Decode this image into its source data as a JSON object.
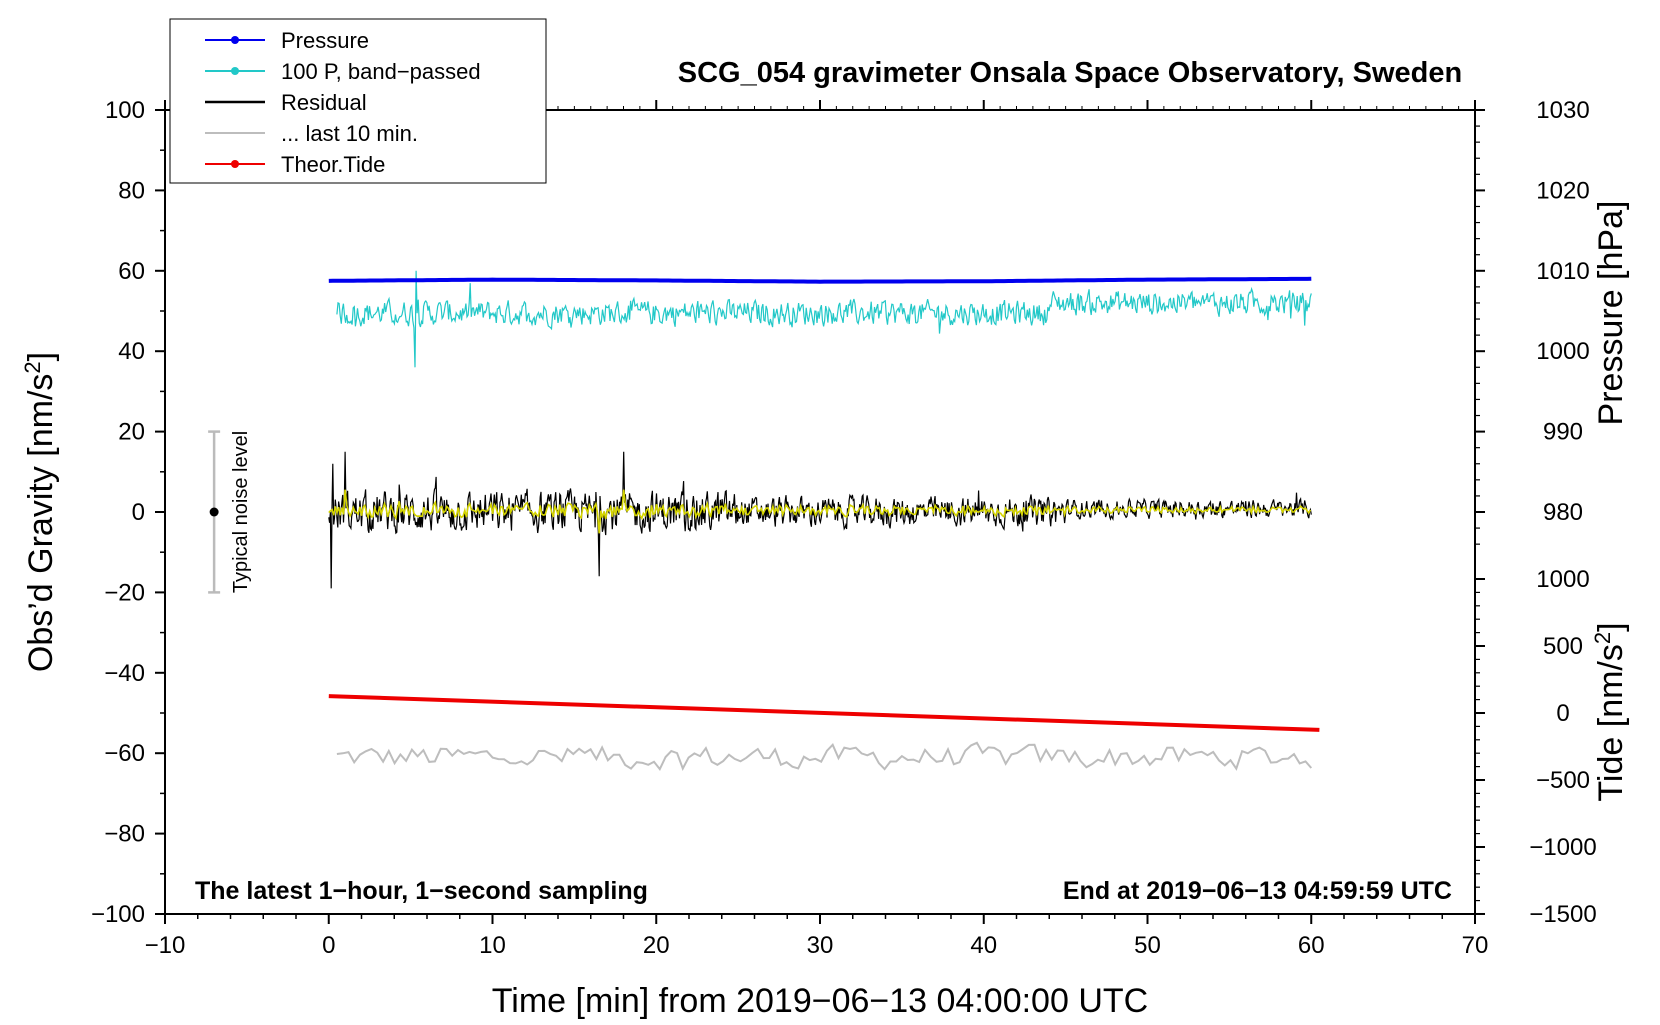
{
  "chart_data": {
    "type": "line",
    "title": "SCG_054 gravimeter Onsala Space Observatory, Sweden",
    "xlabel": "Time [min] from 2019−06−13 04:00:00 UTC",
    "ylabel": "Obs’d Gravity [nm/s",
    "ylabel_sup": "2",
    "ylabel_close": "]",
    "right_label_pressure": "Pressure [hPa]",
    "right_label_tide": "Tide [nm/s",
    "right_label_tide_sup": "2",
    "right_label_tide_close": "]",
    "xlim": [
      -10,
      70
    ],
    "ylim": [
      -100,
      100
    ],
    "x_ticks": [
      -10,
      0,
      10,
      20,
      30,
      40,
      50,
      60,
      70
    ],
    "x_tick_labels": [
      "−10",
      "0",
      "10",
      "20",
      "30",
      "40",
      "50",
      "60",
      "70"
    ],
    "y_ticks": [
      -100,
      -80,
      -60,
      -40,
      -20,
      0,
      20,
      40,
      60,
      80,
      100
    ],
    "y_tick_labels": [
      "−100",
      "−80",
      "−60",
      "−40",
      "−20",
      "0",
      "20",
      "40",
      "60",
      "80",
      "100"
    ],
    "pressure_axis": {
      "ticks": [
        980,
        990,
        1000,
        1010,
        1020,
        1030
      ],
      "tick_labels": [
        "980",
        "990",
        "1000",
        "1010",
        "1020",
        "1030"
      ],
      "gravity_at_1000": 40,
      "gravity_per_hPa": 2
    },
    "tide_axis": {
      "ticks": [
        -1500,
        -1000,
        -500,
        0,
        500,
        1000
      ],
      "tick_labels": [
        "−1500",
        "−1000",
        "−500",
        "0",
        "500",
        "1000"
      ],
      "gravity_at_0": -50,
      "gravity_per_unit": 0.03333
    },
    "series": [
      {
        "name": "Pressure",
        "color": "#0000ee",
        "style": "line-dot",
        "x": [
          0,
          10,
          20,
          30,
          40,
          50,
          60
        ],
        "values": [
          57.5,
          57.8,
          57.6,
          57.3,
          57.4,
          57.8,
          58.0
        ]
      },
      {
        "name": "100 P, band−passed",
        "color": "#22c8c8",
        "style": "line-dot",
        "center": 49.5,
        "amplitude": 3.5,
        "x_range": [
          0.5,
          60
        ]
      },
      {
        "name": "Residual",
        "color": "#000000",
        "style": "line",
        "center": 0,
        "amplitude": 5,
        "x_range": [
          0,
          60
        ]
      },
      {
        "name": "... last 10 min.",
        "color": "#bdbdbd",
        "style": "line",
        "center": -61,
        "amplitude": 2.5,
        "x_range": [
          0.5,
          60
        ]
      },
      {
        "name": "Theor.Tide",
        "color": "#ee0000",
        "style": "line-dot",
        "x": [
          0,
          60.5
        ],
        "values": [
          -45.8,
          -54.2
        ]
      }
    ],
    "band_passed_residual_color": "#d4d400",
    "noise_bar": {
      "label": "Typical noise level",
      "x": -7,
      "center": 0,
      "low": -20,
      "high": 20
    },
    "note_left": "The latest 1−hour, 1−second sampling",
    "note_right": "End at 2019−06−13 04:59:59 UTC",
    "legend_position": "top-left"
  }
}
